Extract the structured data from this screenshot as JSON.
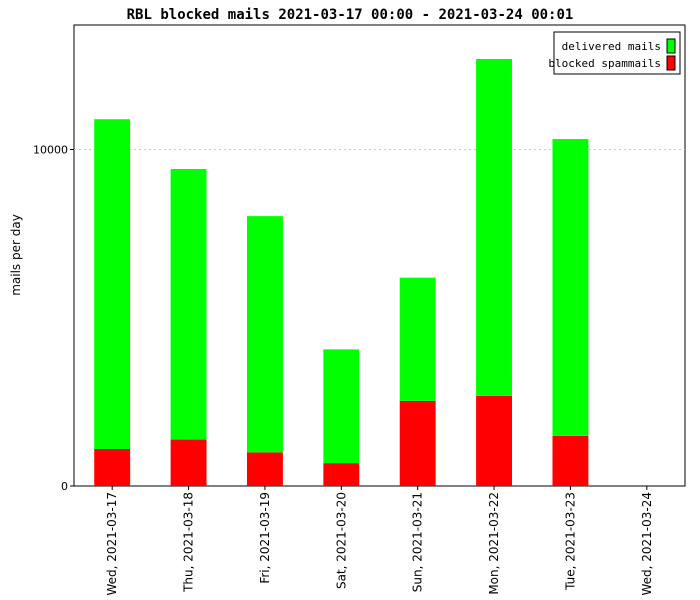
{
  "chart_data": {
    "type": "bar",
    "stacked": true,
    "title": "RBL blocked mails 2021-03-17 00:00 - 2021-03-24 00:01",
    "xlabel": "",
    "ylabel": "mails per day",
    "ylim": [
      0,
      13700
    ],
    "yticks": [
      0,
      10000
    ],
    "grid": "horizontal dotted at 10000",
    "legend_position": "top-right",
    "categories": [
      "Wed, 2021-03-17",
      "Thu, 2021-03-18",
      "Fri, 2021-03-19",
      "Sat, 2021-03-20",
      "Sun, 2021-03-21",
      "Mon, 2021-03-22",
      "Tue, 2021-03-23",
      "Wed, 2021-03-24"
    ],
    "series": [
      {
        "name": "blocked spammails",
        "color": "#ff0000",
        "values": [
          1100,
          1380,
          1000,
          680,
          2530,
          2680,
          1490,
          null
        ]
      },
      {
        "name": "delivered mails",
        "color": "#00ff00",
        "values": [
          9800,
          8040,
          7020,
          3380,
          3660,
          10010,
          8820,
          null
        ]
      }
    ],
    "legend": [
      {
        "name": "delivered mails",
        "color": "#00ff00"
      },
      {
        "name": "blocked spammails",
        "color": "#ff0000"
      }
    ]
  }
}
